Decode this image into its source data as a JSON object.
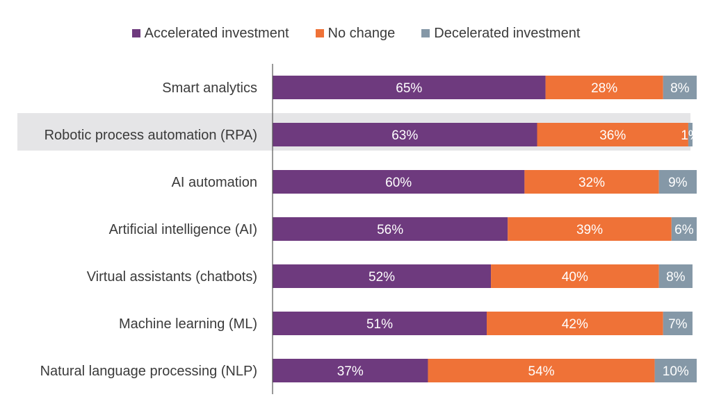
{
  "chart_data": {
    "type": "bar",
    "orientation": "horizontal",
    "stacked": true,
    "categories": [
      "Smart analytics",
      "Robotic process automation (RPA)",
      "AI automation",
      "Artificial intelligence (AI)",
      "Virtual assistants (chatbots)",
      "Machine learning (ML)",
      "Natural language processing (NLP)"
    ],
    "series": [
      {
        "name": "Accelerated investment",
        "color": "#6e3a7e",
        "values": [
          65,
          63,
          60,
          56,
          52,
          51,
          37
        ],
        "labels": [
          "65%",
          "63%",
          "60%",
          "56%",
          "52%",
          "51%",
          "37%"
        ]
      },
      {
        "name": "No change",
        "color": "#ef7237",
        "values": [
          28,
          36,
          32,
          39,
          40,
          42,
          54
        ],
        "labels": [
          "28%",
          "36%",
          "32%",
          "39%",
          "40%",
          "42%",
          "54%"
        ]
      },
      {
        "name": "Decelerated investment",
        "color": "#8598a7",
        "values": [
          8,
          1,
          9,
          6,
          8,
          7,
          10
        ],
        "labels": [
          "8%",
          "1%",
          "9%",
          "6%",
          "8%",
          "7%",
          "10%"
        ]
      }
    ],
    "highlighted_category": "Robotic process automation (RPA)",
    "legend_position": "top-center",
    "grid": false,
    "xlim": [
      0,
      101
    ]
  }
}
